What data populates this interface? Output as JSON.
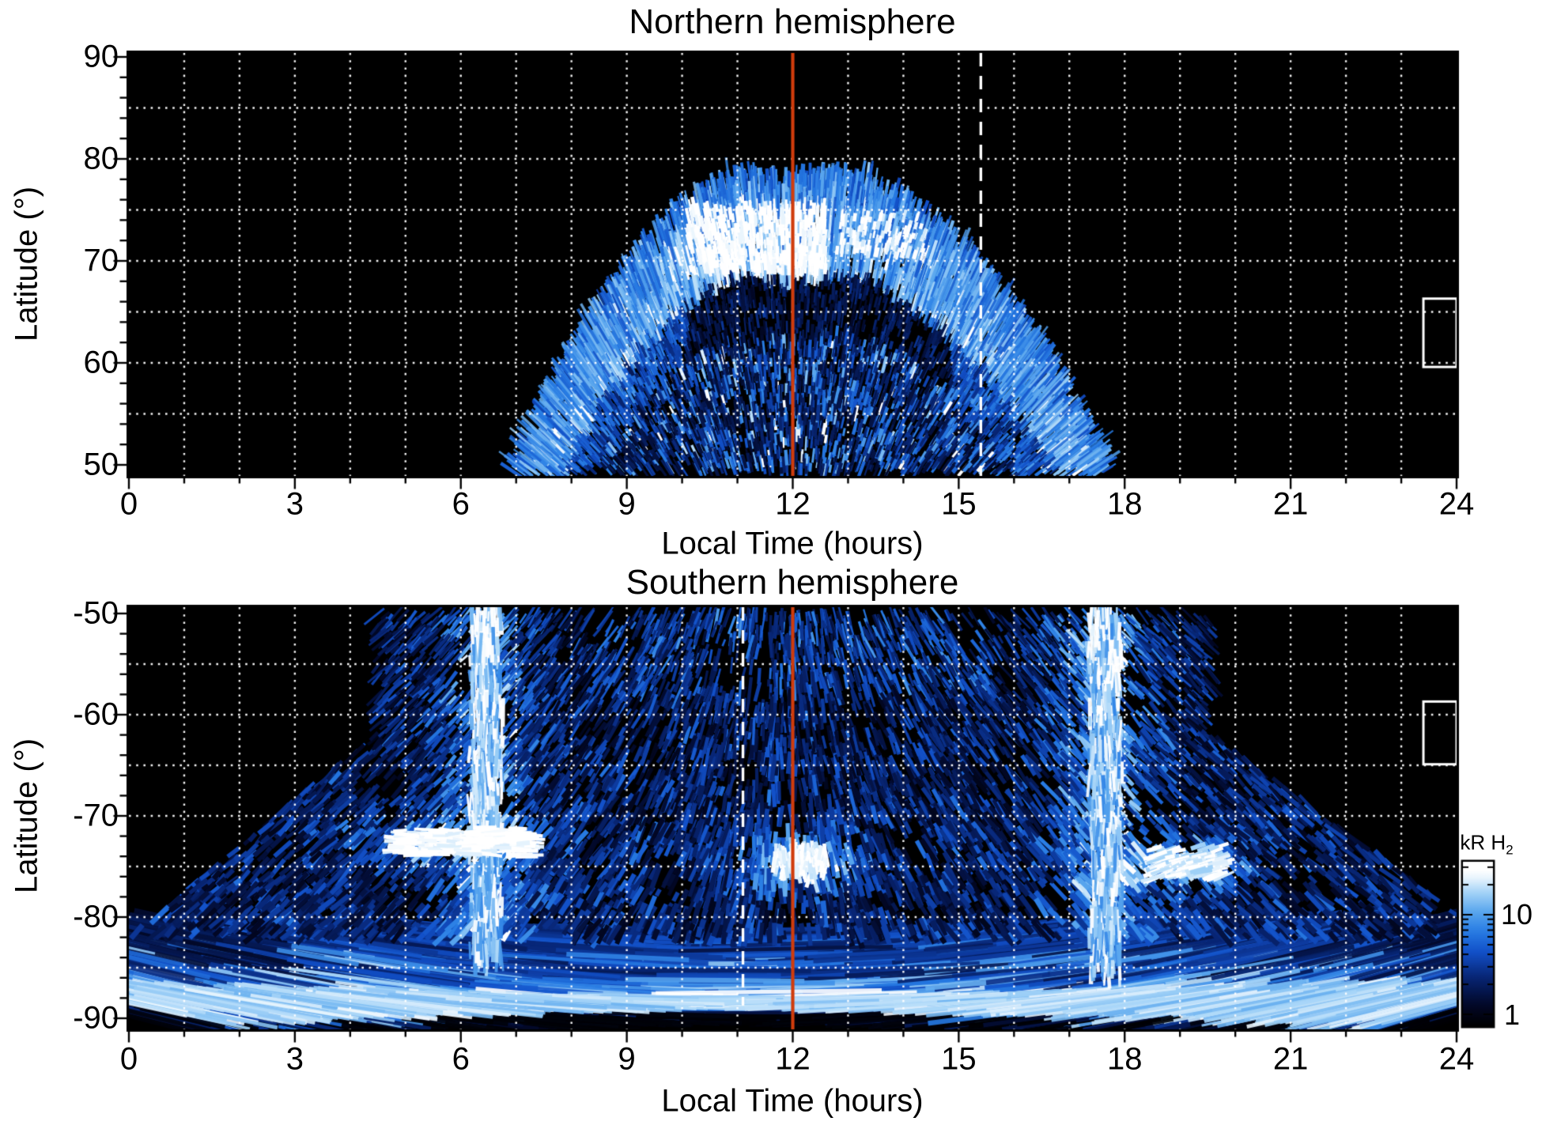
{
  "colors": {
    "background": "#ffffff",
    "panel_background": "#000000",
    "grid": "#ffffff",
    "noon_line": "#d03c0c",
    "annotation_white": "#ffffff",
    "text": "#000000"
  },
  "colorbar": {
    "title_main": "kR H",
    "title_sub": "2",
    "scale": "log",
    "range_kR": [
      0.8,
      34
    ],
    "ticks": [
      {
        "v": 10,
        "label": "10"
      },
      {
        "v": 1,
        "label": "1"
      }
    ],
    "minor_ticks": [
      2,
      3,
      4,
      5,
      6,
      7,
      8,
      9,
      20,
      30
    ],
    "colors_top_to_bottom": [
      "#ffffff",
      "#a9d6f8",
      "#5aa8ee",
      "#2e7de0",
      "#1254c8",
      "#08266e",
      "#020828",
      "#000000"
    ]
  },
  "chart_data": [
    {
      "type": "heatmap",
      "title": "Northern hemisphere",
      "xlabel": "Local Time (hours)",
      "ylabel": "Latitude (°)",
      "xlim": [
        0,
        24
      ],
      "ylim": [
        50,
        90
      ],
      "xticks": [
        {
          "v": 0,
          "label": "0"
        },
        {
          "v": 3,
          "label": "3"
        },
        {
          "v": 6,
          "label": "6"
        },
        {
          "v": 9,
          "label": "9"
        },
        {
          "v": 12,
          "label": "12"
        },
        {
          "v": 15,
          "label": "15"
        },
        {
          "v": 18,
          "label": "18"
        },
        {
          "v": 21,
          "label": "21"
        },
        {
          "v": 24,
          "label": "24"
        }
      ],
      "yticks": [
        {
          "v": 90,
          "label": "90"
        },
        {
          "v": 80,
          "label": "80"
        },
        {
          "v": 70,
          "label": "70"
        },
        {
          "v": 60,
          "label": "60"
        },
        {
          "v": 50,
          "label": "50"
        }
      ],
      "grid": {
        "x_step_hours": 1,
        "y_step_deg": 5,
        "style": "dotted",
        "color": "#ffffff"
      },
      "annotations": {
        "noon_line": {
          "hours": 12,
          "color": "#d03c0c",
          "style": "solid"
        },
        "dashed_line": {
          "hours": 15.4,
          "color": "#ffffff",
          "style": "long-dash"
        },
        "outline_box": {
          "hours": [
            23.4,
            24
          ],
          "lat": [
            59.6,
            66.3
          ],
          "color": "#ffffff"
        }
      },
      "features": [
        {
          "name": "emission-fan",
          "hours": [
            7.0,
            17.5
          ],
          "lat": [
            50,
            80
          ],
          "description": "Dome/fan of radial emission streaks centred on local noon; edge rises from ~50° at 7 h and 17.4 h to ~79-80° at 10.5-13.5 h with a shallow notch (~78°) at noon; black (no data) outside"
        },
        {
          "name": "main-auroral-arc",
          "hours": [
            9,
            15
          ],
          "lat": [
            68,
            78
          ],
          "brightness_kR": "10-30, brightest white patches 10-12.5 h at 70-75°"
        },
        {
          "name": "dark-polar-gap",
          "hours": [
            10.2,
            14.8
          ],
          "lat": [
            63,
            69
          ],
          "brightness_kR": "<1 (nearly black crescent)"
        },
        {
          "name": "diffuse-speckled-emission",
          "hours": [
            7.5,
            17
          ],
          "lat": [
            50,
            66
          ],
          "brightness_kR": "1-10"
        }
      ]
    },
    {
      "type": "heatmap",
      "title": "Southern hemisphere",
      "xlabel": "Local Time (hours)",
      "ylabel": "Latitude (°)",
      "xlim": [
        0,
        24
      ],
      "ylim": [
        -90,
        -50
      ],
      "xticks": [
        {
          "v": 0,
          "label": "0"
        },
        {
          "v": 3,
          "label": "3"
        },
        {
          "v": 6,
          "label": "6"
        },
        {
          "v": 9,
          "label": "9"
        },
        {
          "v": 12,
          "label": "12"
        },
        {
          "v": 15,
          "label": "15"
        },
        {
          "v": 18,
          "label": "18"
        },
        {
          "v": 21,
          "label": "21"
        },
        {
          "v": 24,
          "label": "24"
        }
      ],
      "yticks": [
        {
          "v": -50,
          "label": "-50"
        },
        {
          "v": -60,
          "label": "-60"
        },
        {
          "v": -70,
          "label": "-70"
        },
        {
          "v": -80,
          "label": "-80"
        },
        {
          "v": -90,
          "label": "-90"
        }
      ],
      "grid": {
        "x_step_hours": 1,
        "y_step_deg": 5,
        "style": "dotted",
        "color": "#ffffff"
      },
      "annotations": {
        "noon_line": {
          "hours": 12,
          "color": "#d03c0c",
          "style": "solid"
        },
        "dashed_line": {
          "hours": 11.1,
          "color": "#ffffff",
          "style": "long-dash",
          "lat_extent": [
            -50,
            -88
          ]
        },
        "outline_box": {
          "hours": [
            23.4,
            24
          ],
          "lat": [
            -64.9,
            -58.7
          ],
          "color": "#ffffff"
        }
      },
      "features": [
        {
          "name": "dawn-band",
          "hours": [
            5.9,
            7.0
          ],
          "lat": [
            -84,
            -50
          ],
          "brightness_kR": "10-30 bright vertical band; white clumps -53° to -58°; white arc at -71.5° to -73.5° between 4.8 and 7.2 h"
        },
        {
          "name": "dusk-band",
          "hours": [
            17.1,
            18.2
          ],
          "lat": [
            -85,
            -50
          ],
          "brightness_kR": "10-30 bright vertical band; white clumps 18.5-19.6 h at -73° to -77°"
        },
        {
          "name": "noon-bright-spot",
          "hours": [
            11.3,
            13.0
          ],
          "lat": [
            -77,
            -72
          ],
          "brightness_kR": "~20-30, white core at 12.1 h, -74.5°"
        },
        {
          "name": "diffuse-speckled-emission",
          "hours": [
            4.4,
            19.6
          ],
          "lat": [
            -82,
            -50
          ],
          "brightness_kR": "1-10, fan widening toward the pole (reaches 0-24 h below -80°); black outside"
        },
        {
          "name": "polar-arc-bands",
          "hours": [
            0,
            24
          ],
          "lat": [
            -90,
            -81.5
          ],
          "brightness_kR": "3-15, nearly horizontal banded arcs with dark lanes, brightest continuous stripe near -88°"
        }
      ]
    }
  ]
}
